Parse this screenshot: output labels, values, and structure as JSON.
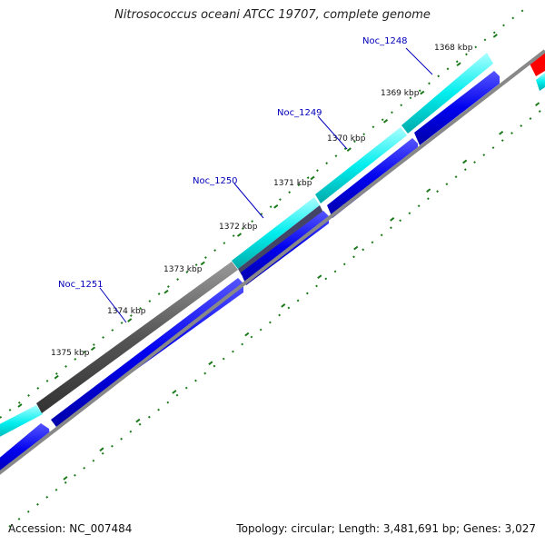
{
  "title": "Nitrosococcus oceani ATCC 19707, complete genome",
  "footer": {
    "accession_label": "Accession:",
    "accession": "NC_007484",
    "topology": "Topology: circular; Length: 3,481,691 bp; Genes: 3,027"
  },
  "kbp_labels": [
    "1368 kbp",
    "1369 kbp",
    "1370 kbp",
    "1371 kbp",
    "1372 kbp",
    "1373 kbp",
    "1374 kbp",
    "1375 kbp"
  ],
  "gene_labels": [
    "Noc_1248",
    "Noc_1249",
    "Noc_1250",
    "Noc_1251"
  ],
  "colors": {
    "cyan_feature": "#00ffff",
    "gray_feature": "#555555",
    "blue_feature": "#0000ee",
    "red_feature": "#ff0000",
    "backbone": "#888888",
    "tick": "#1a7a1a",
    "gene_label": "#0000bb"
  }
}
